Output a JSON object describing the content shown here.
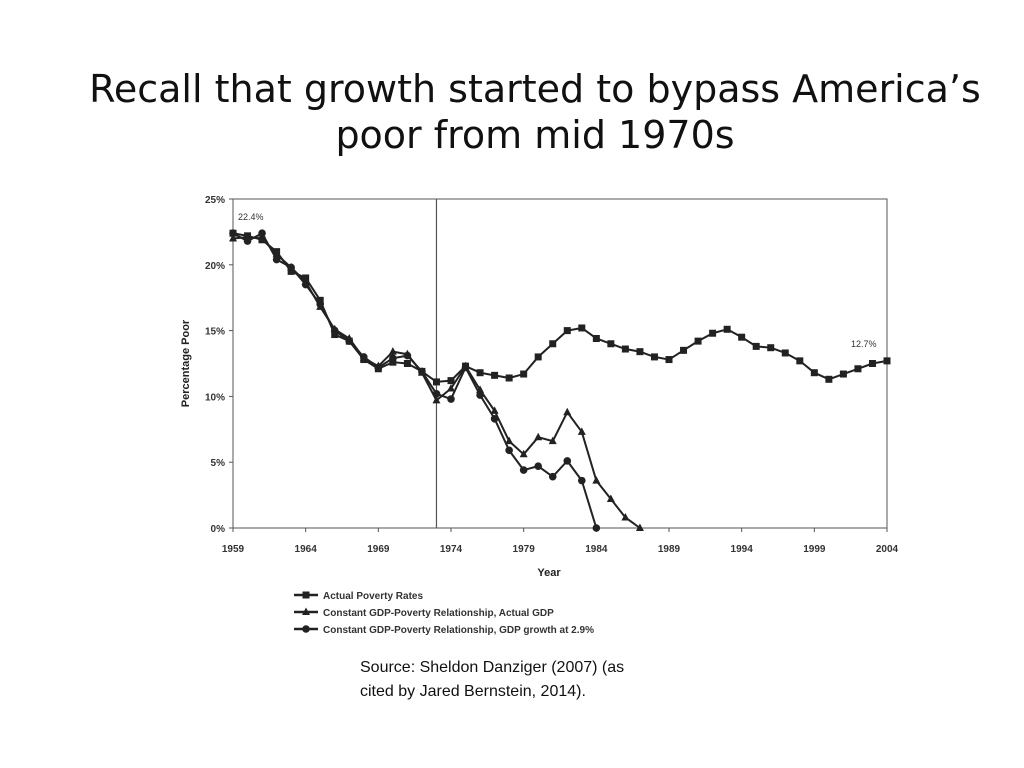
{
  "slide": {
    "title_line1": "Recall that growth started to bypass America’s",
    "title_line2": "poor from mid 1970s",
    "source_line1": "Source: Sheldon Danziger (2007) (as",
    "source_line2": "cited by Jared Bernstein, 2014)."
  },
  "chart_data": {
    "type": "line",
    "xlabel": "Year",
    "ylabel": "Percentage Poor",
    "xlim": [
      1959,
      2004
    ],
    "ylim": [
      0,
      25
    ],
    "x_ticks": [
      "1959",
      "1964",
      "1969",
      "1974",
      "1979",
      "1984",
      "1989",
      "1994",
      "1999",
      "2004"
    ],
    "y_ticks": [
      "0%",
      "5%",
      "10%",
      "15%",
      "20%",
      "25%"
    ],
    "vertical_line_x": 1973,
    "grid": false,
    "legend_position": "bottom",
    "annotations": [
      {
        "text": "22.4%",
        "x": 1959,
        "y": 22.4
      },
      {
        "text": "12.7%",
        "x": 2004,
        "y": 12.7
      }
    ],
    "series": [
      {
        "name": "Actual Poverty Rates",
        "marker": "square",
        "x": [
          1959,
          1960,
          1961,
          1962,
          1963,
          1964,
          1965,
          1966,
          1967,
          1968,
          1969,
          1970,
          1971,
          1972,
          1973,
          1974,
          1975,
          1976,
          1977,
          1978,
          1979,
          1980,
          1981,
          1982,
          1983,
          1984,
          1985,
          1986,
          1987,
          1988,
          1989,
          1990,
          1991,
          1992,
          1993,
          1994,
          1995,
          1996,
          1997,
          1998,
          1999,
          2000,
          2001,
          2002,
          2003,
          2004
        ],
        "values": [
          22.4,
          22.2,
          21.9,
          21.0,
          19.5,
          19.0,
          17.3,
          14.7,
          14.2,
          12.8,
          12.1,
          12.6,
          12.5,
          11.9,
          11.1,
          11.2,
          12.3,
          11.8,
          11.6,
          11.4,
          11.7,
          13.0,
          14.0,
          15.0,
          15.2,
          14.4,
          14.0,
          13.6,
          13.4,
          13.0,
          12.8,
          13.5,
          14.2,
          14.8,
          15.1,
          14.5,
          13.8,
          13.7,
          13.3,
          12.7,
          11.8,
          11.3,
          11.7,
          12.1,
          12.5,
          12.7
        ]
      },
      {
        "name": "Constant GDP-Poverty Relationship, Actual GDP",
        "marker": "triangle",
        "x": [
          1959,
          1960,
          1961,
          1962,
          1963,
          1964,
          1965,
          1966,
          1967,
          1968,
          1969,
          1970,
          1971,
          1972,
          1973,
          1974,
          1975,
          1976,
          1977,
          1978,
          1979,
          1980,
          1981,
          1982,
          1983,
          1984,
          1985,
          1986,
          1987
        ],
        "values": [
          22.0,
          22.1,
          22.0,
          20.8,
          19.8,
          18.7,
          16.8,
          15.1,
          14.4,
          12.9,
          12.3,
          13.4,
          13.2,
          11.8,
          9.7,
          10.6,
          12.3,
          10.5,
          8.9,
          6.6,
          5.6,
          6.9,
          6.6,
          8.8,
          7.3,
          3.6,
          2.2,
          0.8,
          0.0
        ]
      },
      {
        "name": "Constant GDP-Poverty Relationship, GDP growth at 2.9%",
        "marker": "circle",
        "x": [
          1959,
          1960,
          1961,
          1962,
          1963,
          1964,
          1965,
          1966,
          1967,
          1968,
          1969,
          1970,
          1971,
          1972,
          1973,
          1974,
          1975,
          1976,
          1977,
          1978,
          1979,
          1980,
          1981,
          1982,
          1983,
          1984
        ],
        "values": [
          22.4,
          21.8,
          22.4,
          20.4,
          19.8,
          18.5,
          17.0,
          15.0,
          14.2,
          13.0,
          12.2,
          12.9,
          13.1,
          11.9,
          10.2,
          9.8,
          12.2,
          10.1,
          8.3,
          5.9,
          4.4,
          4.7,
          3.9,
          5.1,
          3.6,
          0.0
        ]
      }
    ]
  }
}
